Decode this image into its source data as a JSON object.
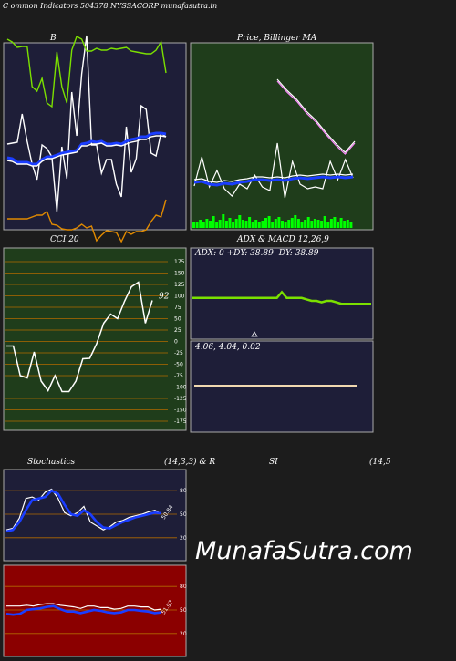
{
  "header": {
    "title": "C ommon  Indicators 504378  NYSSACORP munafasutra.in"
  },
  "colors": {
    "page_bg": "#1c1c1c",
    "navy_panel": "#1e1e38",
    "green_panel": "#1f3d1b",
    "red_panel": "#8b0000",
    "lime": "#7be000",
    "blue": "#1a3dff",
    "orange": "#e08a00",
    "grid_orange": "#b26a00",
    "grid_white": "#888888"
  },
  "watermark": "MunafaSutra.com",
  "chart_data": [
    {
      "id": "bollinger",
      "type": "line",
      "title": "B",
      "series": [
        {
          "color": "#ffffff",
          "values": [
            158,
            157,
            156,
            125,
            155,
            180,
            197,
            159,
            163,
            172,
            232,
            161,
            196,
            101,
            149,
            81,
            39,
            159,
            159,
            190,
            175,
            175,
            202,
            216,
            139,
            189,
            174,
            116,
            120,
            168,
            171,
            146,
            150
          ]
        },
        {
          "color": "#1a3dff",
          "values": [
            173,
            174,
            178,
            178,
            178,
            180,
            180,
            175,
            172,
            172,
            170,
            168,
            167,
            166,
            165,
            158,
            157,
            155,
            156,
            155,
            158,
            158,
            157,
            158,
            155,
            153,
            152,
            150,
            150,
            147,
            146,
            146,
            147
          ]
        },
        {
          "color": "#ffffff",
          "values": [
            176,
            177,
            180,
            180,
            180,
            182,
            182,
            177,
            174,
            174,
            172,
            170,
            169,
            168,
            167,
            160,
            160,
            158,
            158,
            157,
            160,
            160,
            159,
            160,
            158,
            156,
            155,
            153,
            153,
            150,
            149,
            149,
            150
          ]
        },
        {
          "color": "#7be000",
          "values": [
            43,
            46,
            52,
            51,
            51,
            95,
            100,
            86,
            113,
            117,
            57,
            95,
            113,
            55,
            40,
            43,
            56,
            56,
            53,
            55,
            55,
            53,
            54,
            53,
            52,
            56,
            57,
            58,
            59,
            59,
            55,
            46,
            80
          ]
        },
        {
          "color": "#e08a00",
          "values": [
            240,
            240,
            240,
            240,
            240,
            238,
            236,
            236,
            232,
            246,
            247,
            251,
            252,
            252,
            250,
            246,
            250,
            248,
            264,
            258,
            253,
            254,
            255,
            265,
            254,
            257,
            254,
            254,
            252,
            243,
            236,
            238,
            219
          ]
        }
      ]
    },
    {
      "id": "price_ma",
      "type": "line",
      "title": "Price,  Billinger  MA",
      "series": [
        {
          "color": "#ffffff",
          "values": [
            40,
            52,
            62,
            75,
            85,
            98,
            110,
            120,
            108
          ]
        },
        {
          "color": "#ff88ff",
          "values": [
            42,
            54,
            64,
            77,
            87,
            100,
            112,
            122,
            110
          ]
        },
        {
          "color": "#ffffff",
          "values": [
            157,
            125,
            158,
            140,
            160,
            168,
            155,
            160,
            145,
            158,
            162,
            110,
            170,
            130,
            155,
            160,
            158,
            160,
            130,
            150,
            128,
            148
          ]
        },
        {
          "color": "#1a3dff",
          "values": [
            153,
            152,
            155,
            156,
            154,
            155,
            153,
            152,
            150,
            150,
            151,
            150,
            151,
            149,
            148,
            149,
            148,
            147,
            148,
            147,
            148,
            147
          ]
        },
        {
          "color": "#ffffff",
          "values": [
            150,
            149,
            152,
            153,
            151,
            152,
            150,
            149,
            147,
            147,
            148,
            147,
            148,
            146,
            145,
            146,
            145,
            144,
            145,
            144,
            145,
            144
          ]
        }
      ],
      "volume": [
        7,
        6,
        9,
        6,
        10,
        8,
        13,
        7,
        9,
        15,
        8,
        11,
        6,
        10,
        14,
        9,
        8,
        12,
        6,
        9,
        7,
        8,
        11,
        13,
        6,
        10,
        12,
        8,
        7,
        9,
        11,
        14,
        10,
        7,
        9,
        12,
        8,
        10,
        9,
        8,
        13,
        7,
        10,
        12,
        6,
        11,
        8,
        9,
        7
      ]
    },
    {
      "id": "cci",
      "type": "line",
      "title": "CCI 20",
      "last_label": "92",
      "yticks": [
        175,
        150,
        125,
        100,
        75,
        50,
        25,
        0,
        -25,
        -50,
        -75,
        -100,
        -125,
        -150,
        -175
      ],
      "ylim": [
        -185,
        185
      ],
      "values": [
        -10,
        -10,
        -75,
        -80,
        -23,
        -87,
        -108,
        -75,
        -110,
        -110,
        -87,
        -38,
        -37,
        -5,
        40,
        60,
        50,
        88,
        120,
        130,
        40,
        90
      ]
    },
    {
      "id": "adx",
      "type": "line",
      "title": "ADX  & MACD 12,26,9",
      "label": "ADX: 0  +DY: 38.89 -DY: 38.89",
      "values": [
        39,
        39,
        39,
        39,
        39,
        39,
        39,
        39,
        39,
        39,
        39,
        39,
        39,
        39,
        39,
        39,
        39,
        39,
        43,
        39,
        39,
        39,
        39,
        38,
        37,
        37,
        36,
        37,
        37,
        36,
        35,
        35,
        35,
        35,
        35,
        35,
        35
      ]
    },
    {
      "id": "macd",
      "type": "line",
      "label": "4.06,  4.04,  0.02",
      "values": [
        4.06,
        4.06,
        4.06,
        4.06,
        4.06,
        4.06,
        4.06,
        4.06,
        4.06,
        4.06,
        4.06,
        4.06,
        4.06,
        4.06,
        4.06,
        4.06,
        4.06,
        4.06,
        4.06,
        4.06,
        4.06
      ]
    },
    {
      "id": "stochastics",
      "type": "line",
      "title": "Stochastics",
      "params": "(14,3,3) & R",
      "last_label": "50.84",
      "yticks": [
        80,
        50,
        20
      ],
      "ylim": [
        0,
        100
      ],
      "series": [
        {
          "color": "#ffffff",
          "values": [
            30,
            32,
            45,
            70,
            72,
            68,
            78,
            82,
            70,
            52,
            48,
            52,
            60,
            40,
            35,
            30,
            34,
            40,
            42,
            46,
            48,
            50,
            53,
            55,
            50
          ]
        },
        {
          "color": "#1a3dff",
          "values": [
            28,
            30,
            40,
            55,
            68,
            70,
            72,
            80,
            76,
            62,
            50,
            48,
            55,
            50,
            40,
            33,
            32,
            36,
            40,
            43,
            46,
            48,
            50,
            52,
            51
          ]
        }
      ]
    },
    {
      "id": "rsi",
      "type": "line",
      "title": "SI",
      "params": "(14,5",
      "last_label": "51.97",
      "yticks": [
        80,
        50,
        20
      ],
      "ylim": [
        0,
        100
      ],
      "series": [
        {
          "color": "#ffffff",
          "values": [
            55,
            55,
            55,
            56,
            55,
            57,
            58,
            58,
            56,
            55,
            54,
            52,
            55,
            55,
            53,
            53,
            51,
            52,
            55,
            55,
            54,
            54,
            50,
            51
          ]
        },
        {
          "color": "#1a3dff",
          "values": [
            45,
            44,
            45,
            50,
            51,
            52,
            54,
            55,
            51,
            48,
            48,
            46,
            48,
            50,
            49,
            47,
            46,
            47,
            50,
            50,
            49,
            48,
            46,
            47
          ]
        }
      ]
    }
  ]
}
